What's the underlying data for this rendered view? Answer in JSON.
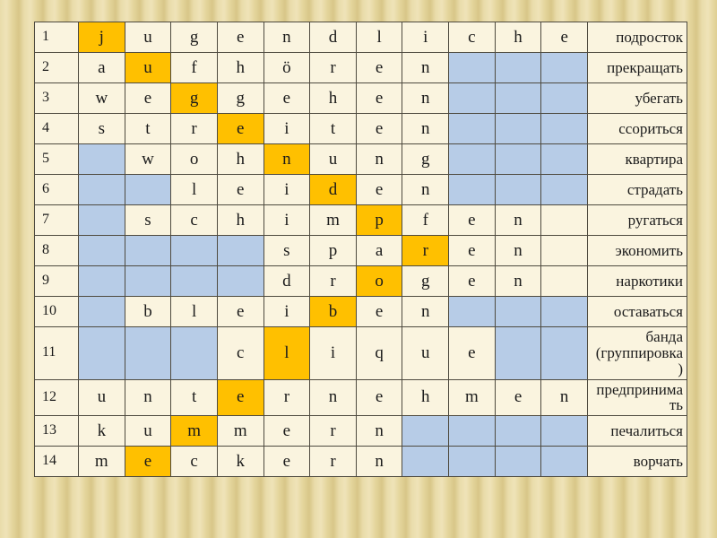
{
  "slide": {
    "hidden_vertical_word": "Jugendprobleme"
  },
  "colors": {
    "highlight_orange": "#FFC000",
    "empty_blue": "#B7CCE7",
    "cell_cream": "#FAF4DF",
    "grid_line": "#4E4A3F",
    "background_tan": "#E6D7A0"
  },
  "table": {
    "columns": 11,
    "rows": [
      {
        "num": "1",
        "clue": "подросток",
        "cells": [
          {
            "l": "j",
            "hl": true
          },
          {
            "l": "u"
          },
          {
            "l": "g"
          },
          {
            "l": "e"
          },
          {
            "l": "n"
          },
          {
            "l": "d"
          },
          {
            "l": "l"
          },
          {
            "l": "i"
          },
          {
            "l": "c"
          },
          {
            "l": "h"
          },
          {
            "l": "e"
          }
        ]
      },
      {
        "num": "2",
        "clue": "прекращать",
        "cells": [
          {
            "l": "a"
          },
          {
            "l": "u",
            "hl": true
          },
          {
            "l": "f"
          },
          {
            "l": "h"
          },
          {
            "l": "ö"
          },
          {
            "l": "r"
          },
          {
            "l": "e"
          },
          {
            "l": "n"
          },
          {
            "b": true
          },
          {
            "b": true
          },
          {
            "b": true
          }
        ]
      },
      {
        "num": "3",
        "clue": "убегать",
        "cells": [
          {
            "l": "w"
          },
          {
            "l": "e"
          },
          {
            "l": "g",
            "hl": true
          },
          {
            "l": "g"
          },
          {
            "l": "e"
          },
          {
            "l": "h"
          },
          {
            "l": "e"
          },
          {
            "l": "n"
          },
          {
            "b": true
          },
          {
            "b": true
          },
          {
            "b": true
          }
        ]
      },
      {
        "num": "4",
        "clue": "ссориться",
        "cells": [
          {
            "l": "s"
          },
          {
            "l": "t"
          },
          {
            "l": "r"
          },
          {
            "l": "e",
            "hl": true
          },
          {
            "l": "i"
          },
          {
            "l": "t"
          },
          {
            "l": "e"
          },
          {
            "l": "n"
          },
          {
            "b": true
          },
          {
            "b": true
          },
          {
            "b": true
          }
        ]
      },
      {
        "num": "5",
        "clue": "квартира",
        "cells": [
          {
            "b": true
          },
          {
            "l": "w"
          },
          {
            "l": "o"
          },
          {
            "l": "h"
          },
          {
            "l": "n",
            "hl": true
          },
          {
            "l": "u"
          },
          {
            "l": "n"
          },
          {
            "l": "g"
          },
          {
            "b": true
          },
          {
            "b": true
          },
          {
            "b": true
          }
        ]
      },
      {
        "num": "6",
        "clue": "страдать",
        "cells": [
          {
            "b": true
          },
          {
            "b": true
          },
          {
            "l": "l"
          },
          {
            "l": "e"
          },
          {
            "l": "i"
          },
          {
            "l": "d",
            "hl": true
          },
          {
            "l": "e"
          },
          {
            "l": "n"
          },
          {
            "b": true
          },
          {
            "b": true
          },
          {
            "b": true
          }
        ]
      },
      {
        "num": "7",
        "clue": "ругаться",
        "cells": [
          {
            "b": true
          },
          {
            "l": "s"
          },
          {
            "l": "c"
          },
          {
            "l": "h"
          },
          {
            "l": "i"
          },
          {
            "l": "m"
          },
          {
            "l": "p",
            "hl": true
          },
          {
            "l": "f"
          },
          {
            "l": "e"
          },
          {
            "l": "n"
          },
          {}
        ]
      },
      {
        "num": "8",
        "clue": "экономить",
        "cells": [
          {
            "b": true
          },
          {
            "b": true
          },
          {
            "b": true
          },
          {
            "b": true
          },
          {
            "l": "s"
          },
          {
            "l": "p"
          },
          {
            "l": "a"
          },
          {
            "l": "r",
            "hl": true
          },
          {
            "l": "e"
          },
          {
            "l": "n"
          },
          {}
        ]
      },
      {
        "num": "9",
        "clue": "наркотики",
        "cells": [
          {
            "b": true
          },
          {
            "b": true
          },
          {
            "b": true
          },
          {
            "b": true
          },
          {
            "l": "d"
          },
          {
            "l": "r"
          },
          {
            "l": "o",
            "hl": true
          },
          {
            "l": "g"
          },
          {
            "l": "e"
          },
          {
            "l": "n"
          },
          {}
        ]
      },
      {
        "num": "10",
        "clue": "оставаться",
        "cells": [
          {
            "b": true
          },
          {
            "l": "b"
          },
          {
            "l": "l"
          },
          {
            "l": "e"
          },
          {
            "l": "i"
          },
          {
            "l": "b",
            "hl": true
          },
          {
            "l": "e"
          },
          {
            "l": "n"
          },
          {
            "b": true
          },
          {
            "b": true
          },
          {
            "b": true
          }
        ]
      },
      {
        "num": "11",
        "clue": "банда (группировка)",
        "cells": [
          {
            "b": true
          },
          {
            "b": true
          },
          {
            "b": true
          },
          {
            "l": "c"
          },
          {
            "l": "l",
            "hl": true
          },
          {
            "l": "i"
          },
          {
            "l": "q"
          },
          {
            "l": "u"
          },
          {
            "l": "e"
          },
          {
            "b": true
          },
          {
            "b": true
          }
        ]
      },
      {
        "num": "12",
        "clue": "предпринимать",
        "cells": [
          {
            "l": "u"
          },
          {
            "l": "n"
          },
          {
            "l": "t"
          },
          {
            "l": "e",
            "hl": true
          },
          {
            "l": "r"
          },
          {
            "l": "n"
          },
          {
            "l": "e"
          },
          {
            "l": "h"
          },
          {
            "l": "m"
          },
          {
            "l": "e"
          },
          {
            "l": "n"
          }
        ]
      },
      {
        "num": "13",
        "clue": "печалиться",
        "cells": [
          {
            "l": "k"
          },
          {
            "l": "u"
          },
          {
            "l": "m",
            "hl": true
          },
          {
            "l": "m"
          },
          {
            "l": "e"
          },
          {
            "l": "r"
          },
          {
            "l": "n"
          },
          {
            "b": true
          },
          {
            "b": true
          },
          {
            "b": true
          },
          {
            "b": true
          }
        ]
      },
      {
        "num": "14",
        "clue": "ворчать",
        "cells": [
          {
            "l": "m"
          },
          {
            "l": "e",
            "hl": true
          },
          {
            "l": "c"
          },
          {
            "l": "k"
          },
          {
            "l": "e"
          },
          {
            "l": "r"
          },
          {
            "l": "n"
          },
          {
            "b": true
          },
          {
            "b": true
          },
          {
            "b": true
          },
          {
            "b": true
          }
        ]
      }
    ]
  }
}
